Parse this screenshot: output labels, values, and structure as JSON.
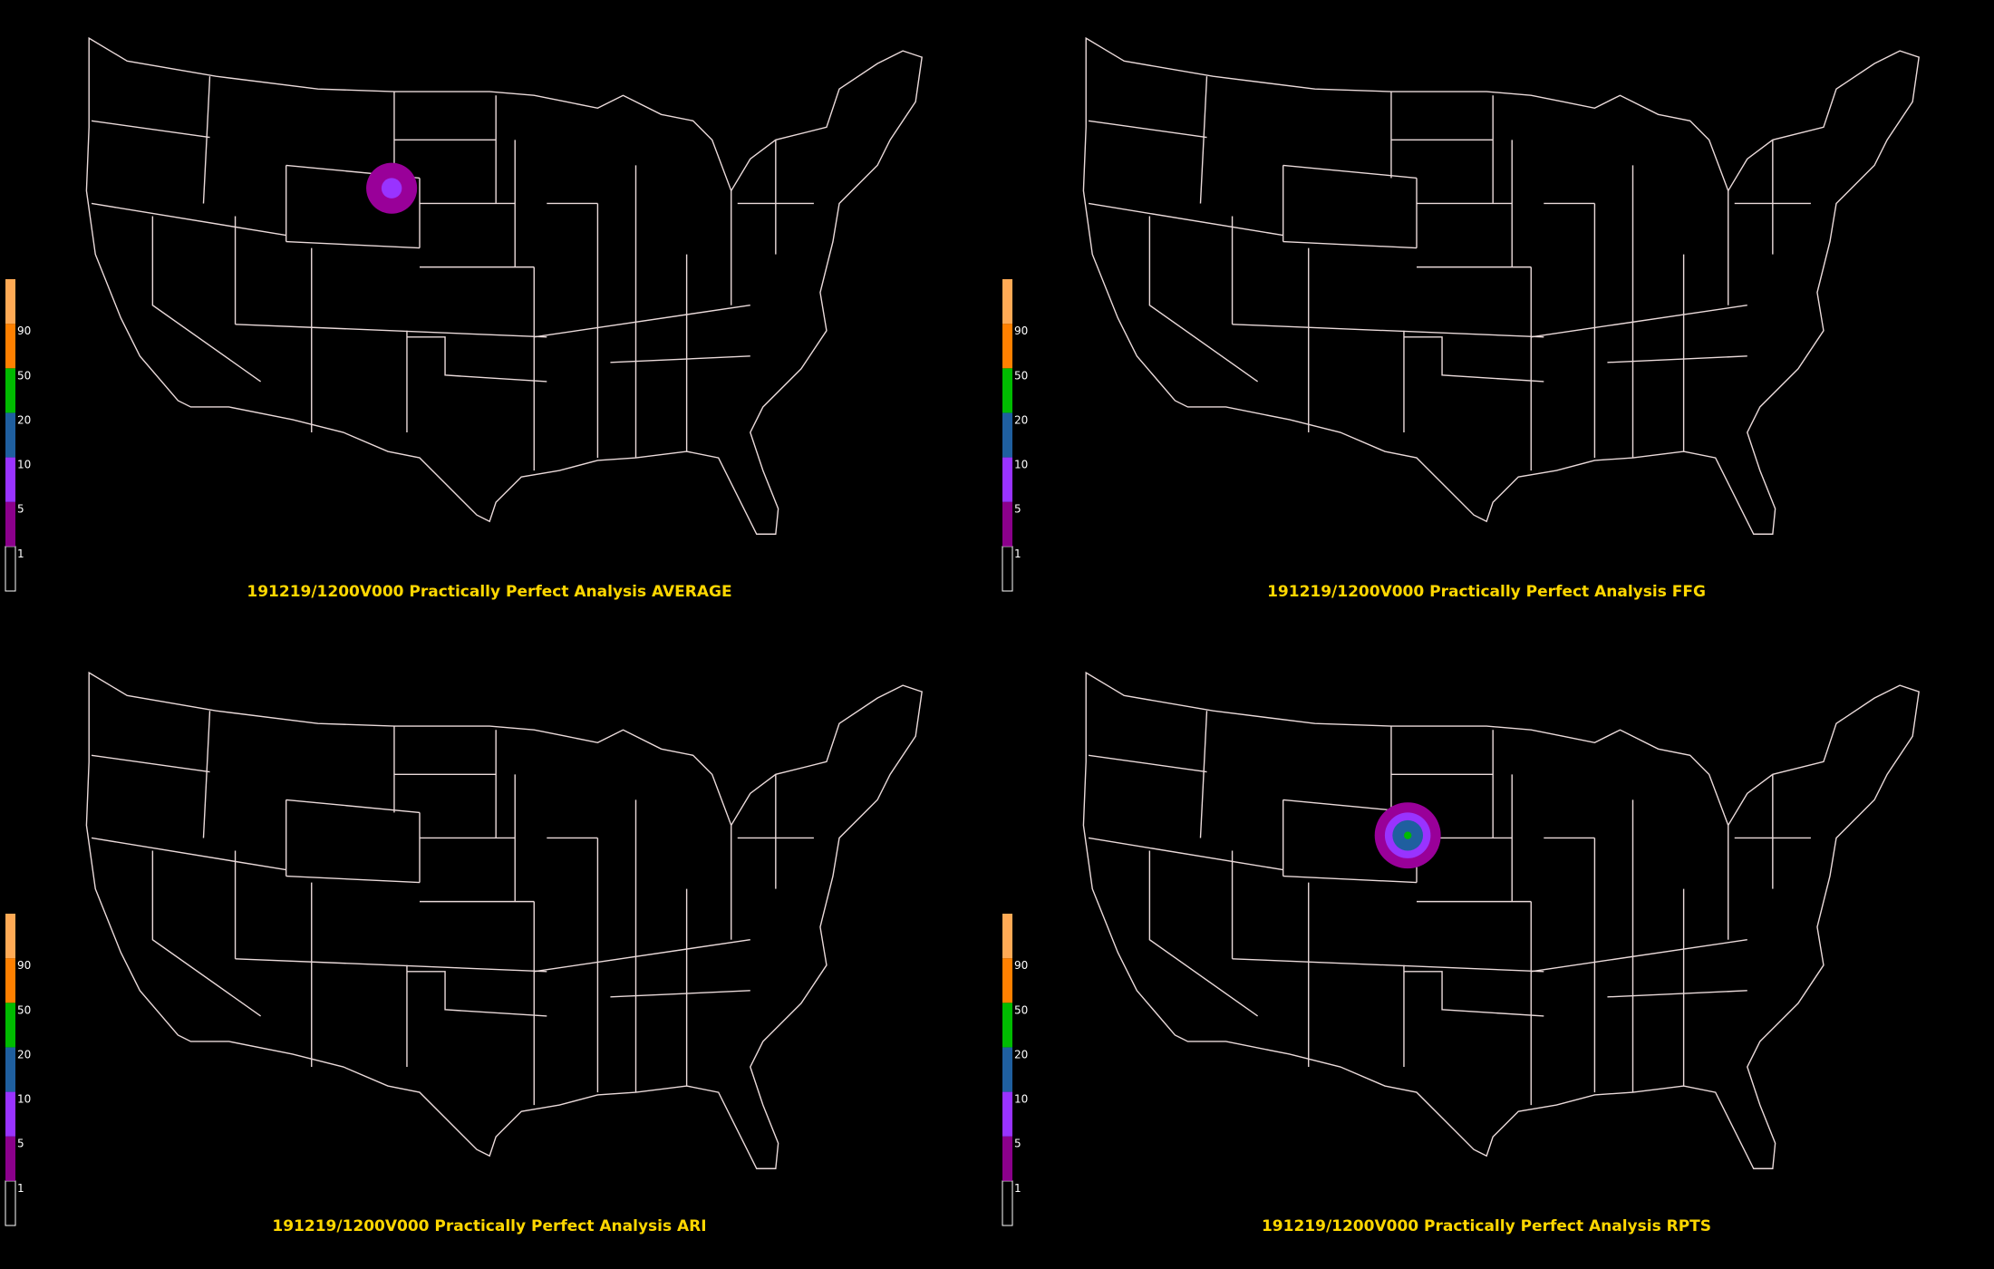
{
  "panels": [
    {
      "title": "191219/1200V000 Practically Perfect Analysis AVERAGE"
    },
    {
      "title": "191219/1200V000 Practically Perfect Analysis FFG"
    },
    {
      "title": "191219/1200V000 Practically Perfect Analysis ARI"
    },
    {
      "title": "191219/1200V000 Practically Perfect Analysis RPTS"
    }
  ],
  "colorbar": {
    "labels": [
      "1",
      "5",
      "10",
      "20",
      "50",
      "90"
    ],
    "colors": [
      "#000000",
      "#8b008b",
      "#9933ff",
      "#1f5f9f",
      "#00bb00",
      "#ff8000",
      "#ffaa55"
    ]
  }
}
